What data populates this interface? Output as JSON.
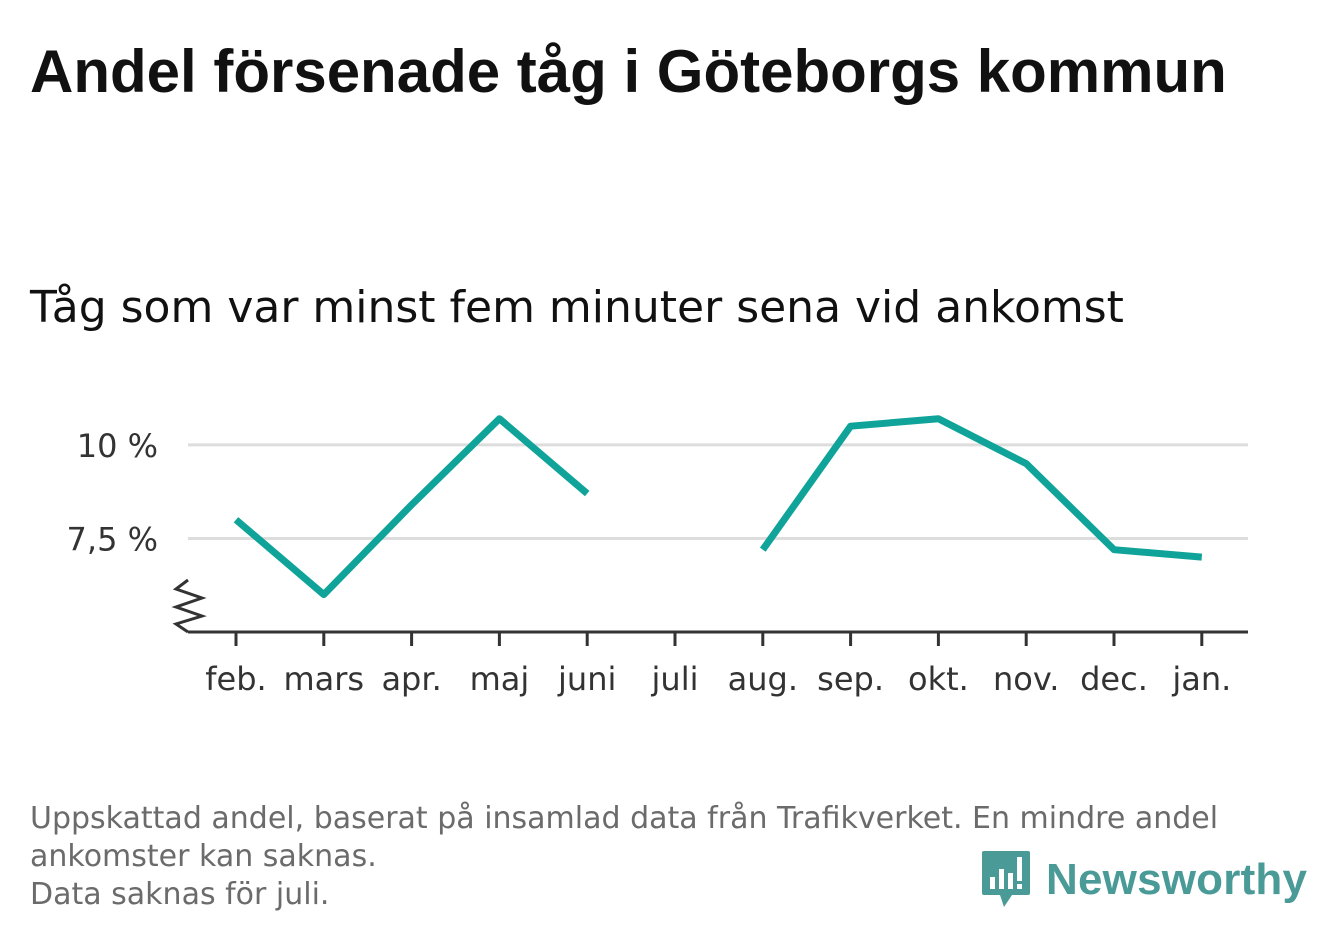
{
  "header": {
    "title": "Andel försenade tåg i Göteborgs kommun",
    "subtitle": "Tåg som var minst fem minuter sena vid ankomst"
  },
  "footer": {
    "note_line1": "Uppskattad andel, baserat på insamlad data från Trafikverket. En mindre andel ankomster kan saknas.",
    "note_line2": "Data saknas för juli.",
    "brand": "Newsworthy"
  },
  "colors": {
    "series": "#0fa39a",
    "grid": "#dddddd",
    "axis": "#333333",
    "brand": "#4a9a97"
  },
  "icons": {
    "brand_logo": "bar-chart-speech-bubble-icon",
    "axis_break": "zigzag-break-icon"
  },
  "chart_data": {
    "type": "line",
    "categories": [
      "feb.",
      "mars",
      "apr.",
      "maj",
      "juni",
      "juli",
      "aug.",
      "sep.",
      "okt.",
      "nov.",
      "dec.",
      "jan."
    ],
    "series": [
      {
        "values": [
          8.0,
          6.0,
          8.4,
          10.7,
          8.7,
          null,
          7.2,
          10.5,
          10.7,
          9.5,
          7.2,
          7.0
        ]
      }
    ],
    "y_ticks": [
      7.5,
      10
    ],
    "y_tick_labels": [
      "7,5 %",
      "10 %"
    ],
    "ylim": [
      5.0,
      11.2
    ],
    "y_axis_break": true,
    "grid": true,
    "legend": "none"
  }
}
